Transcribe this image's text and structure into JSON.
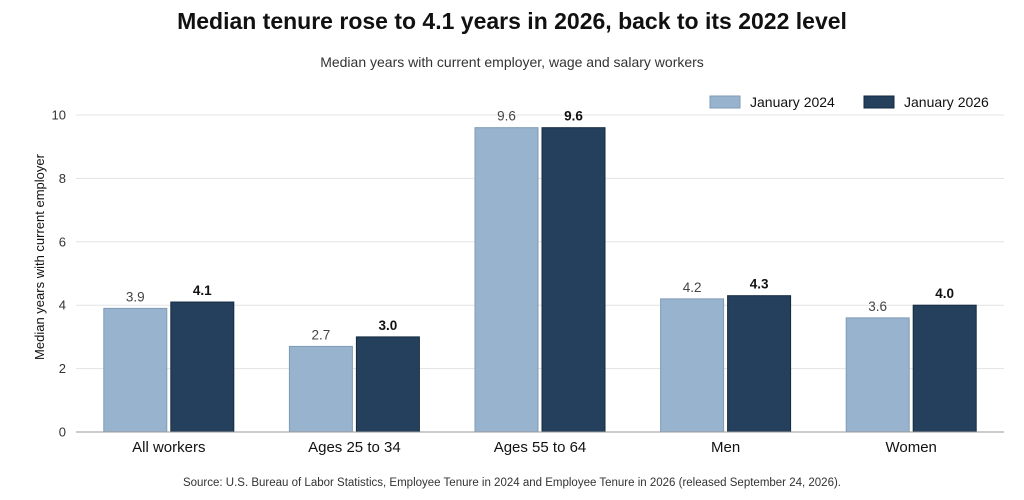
{
  "header": {
    "title": "Median tenure rose to 4.1 years in 2026, back to its 2022 level",
    "subtitle": "Median years with current employer, wage and salary workers"
  },
  "footer": {
    "source": "Source: U.S. Bureau of Labor Statistics, Employee Tenure in 2024 and Employee Tenure in 2026 (released September 24, 2026)."
  },
  "colors": {
    "series_2024": "#98b3cd",
    "series_2026": "#24405c",
    "grid": "#e3e3e3",
    "axis": "#999999"
  },
  "chart_data": {
    "type": "bar",
    "title": "Median tenure rose to 4.1 years in 2026, back to its 2022 level",
    "subtitle": "Median years with current employer, wage and salary workers",
    "xlabel": "",
    "ylabel": "Median years with current employer",
    "ylim": [
      0,
      10
    ],
    "yticks": [
      0,
      2,
      4,
      6,
      8,
      10
    ],
    "grid": true,
    "legend": "top-right",
    "categories": [
      "All workers",
      "Ages 25 to 34",
      "Ages 55 to 64",
      "Men",
      "Women"
    ],
    "series": [
      {
        "name": "January 2024",
        "values": [
          3.9,
          2.7,
          9.6,
          4.2,
          3.6
        ],
        "labels": [
          "3.9",
          "2.7",
          "9.6",
          "4.2",
          "3.6"
        ]
      },
      {
        "name": "January 2026",
        "values": [
          4.1,
          3.0,
          9.6,
          4.3,
          4.0
        ],
        "labels": [
          "4.1",
          "3.0",
          "9.6",
          "4.3",
          "4.0"
        ]
      }
    ]
  }
}
